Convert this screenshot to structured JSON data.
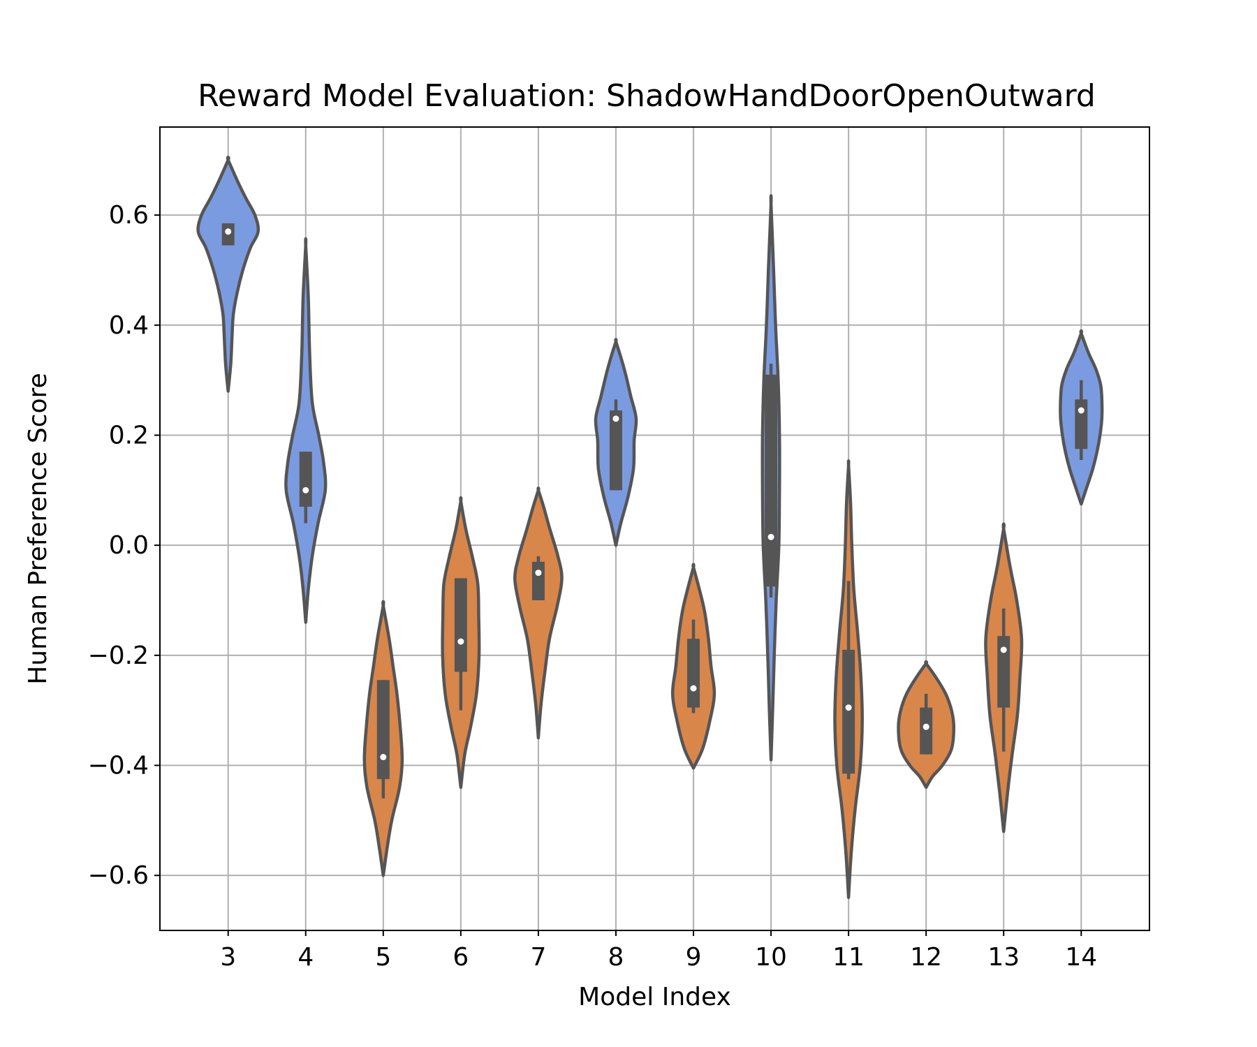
{
  "chart_data": {
    "type": "violin",
    "title": "Reward Model Evaluation: ShadowHandDoorOpenOutward",
    "xlabel": "Model Index",
    "ylabel": "Human Preference Score",
    "ylim": [
      -0.7,
      0.76
    ],
    "yticks": [
      -0.6,
      -0.4,
      -0.2,
      0.0,
      0.2,
      0.4,
      0.6
    ],
    "ytick_labels": [
      "−0.6",
      "−0.4",
      "−0.2",
      "0.0",
      "0.2",
      "0.4",
      "0.6"
    ],
    "grid": true,
    "colors": {
      "blue": "#7b9be0",
      "orange": "#d9864a",
      "edge": "#555555"
    },
    "categories": [
      "3",
      "4",
      "5",
      "6",
      "7",
      "8",
      "9",
      "10",
      "11",
      "12",
      "13",
      "14"
    ],
    "series": [
      {
        "x": "3",
        "color": "blue",
        "median": 0.57,
        "q1": 0.545,
        "q3": 0.585,
        "whisker_low": 0.545,
        "whisker_high": 0.585,
        "min": 0.28,
        "max": 0.7,
        "profile": [
          [
            0.28,
            0.0
          ],
          [
            0.33,
            0.08
          ],
          [
            0.38,
            0.12
          ],
          [
            0.42,
            0.16
          ],
          [
            0.46,
            0.28
          ],
          [
            0.5,
            0.45
          ],
          [
            0.54,
            0.68
          ],
          [
            0.57,
            0.92
          ],
          [
            0.6,
            0.82
          ],
          [
            0.63,
            0.55
          ],
          [
            0.66,
            0.3
          ],
          [
            0.7,
            0.0
          ]
        ]
      },
      {
        "x": "4",
        "color": "blue",
        "median": 0.1,
        "q1": 0.07,
        "q3": 0.17,
        "whisker_low": 0.04,
        "whisker_high": 0.17,
        "min": -0.14,
        "max": 0.545,
        "profile": [
          [
            -0.14,
            0.0
          ],
          [
            -0.08,
            0.08
          ],
          [
            -0.02,
            0.2
          ],
          [
            0.04,
            0.38
          ],
          [
            0.1,
            0.6
          ],
          [
            0.15,
            0.55
          ],
          [
            0.2,
            0.4
          ],
          [
            0.26,
            0.2
          ],
          [
            0.35,
            0.12
          ],
          [
            0.45,
            0.08
          ],
          [
            0.545,
            0.0
          ]
        ]
      },
      {
        "x": "5",
        "color": "orange",
        "median": -0.385,
        "q1": -0.425,
        "q3": -0.245,
        "whisker_low": -0.46,
        "whisker_high": -0.245,
        "min": -0.6,
        "max": -0.11,
        "profile": [
          [
            -0.6,
            0.0
          ],
          [
            -0.55,
            0.12
          ],
          [
            -0.5,
            0.26
          ],
          [
            -0.44,
            0.5
          ],
          [
            -0.39,
            0.58
          ],
          [
            -0.33,
            0.52
          ],
          [
            -0.27,
            0.42
          ],
          [
            -0.22,
            0.3
          ],
          [
            -0.17,
            0.18
          ],
          [
            -0.11,
            0.0
          ]
        ]
      },
      {
        "x": "6",
        "color": "orange",
        "median": -0.175,
        "q1": -0.23,
        "q3": -0.06,
        "whisker_low": -0.3,
        "whisker_high": -0.06,
        "min": -0.44,
        "max": 0.08,
        "profile": [
          [
            -0.44,
            0.0
          ],
          [
            -0.38,
            0.12
          ],
          [
            -0.33,
            0.3
          ],
          [
            -0.27,
            0.48
          ],
          [
            -0.2,
            0.56
          ],
          [
            -0.13,
            0.55
          ],
          [
            -0.07,
            0.52
          ],
          [
            -0.02,
            0.35
          ],
          [
            0.03,
            0.15
          ],
          [
            0.08,
            0.0
          ]
        ]
      },
      {
        "x": "7",
        "color": "orange",
        "median": -0.05,
        "q1": -0.1,
        "q3": -0.03,
        "whisker_low": -0.1,
        "whisker_high": -0.02,
        "min": -0.35,
        "max": 0.1,
        "profile": [
          [
            -0.35,
            0.0
          ],
          [
            -0.29,
            0.08
          ],
          [
            -0.23,
            0.2
          ],
          [
            -0.17,
            0.34
          ],
          [
            -0.11,
            0.58
          ],
          [
            -0.06,
            0.72
          ],
          [
            -0.02,
            0.6
          ],
          [
            0.03,
            0.35
          ],
          [
            0.07,
            0.16
          ],
          [
            0.1,
            0.0
          ]
        ]
      },
      {
        "x": "8",
        "color": "blue",
        "median": 0.23,
        "q1": 0.1,
        "q3": 0.245,
        "whisker_low": 0.1,
        "whisker_high": 0.265,
        "min": 0.0,
        "max": 0.37,
        "profile": [
          [
            0.0,
            0.0
          ],
          [
            0.04,
            0.15
          ],
          [
            0.09,
            0.38
          ],
          [
            0.14,
            0.54
          ],
          [
            0.19,
            0.56
          ],
          [
            0.23,
            0.62
          ],
          [
            0.27,
            0.46
          ],
          [
            0.31,
            0.3
          ],
          [
            0.34,
            0.16
          ],
          [
            0.37,
            0.0
          ]
        ]
      },
      {
        "x": "9",
        "color": "orange",
        "median": -0.26,
        "q1": -0.295,
        "q3": -0.17,
        "whisker_low": -0.305,
        "whisker_high": -0.135,
        "min": -0.405,
        "max": -0.04,
        "profile": [
          [
            -0.405,
            0.0
          ],
          [
            -0.37,
            0.28
          ],
          [
            -0.32,
            0.5
          ],
          [
            -0.27,
            0.64
          ],
          [
            -0.22,
            0.54
          ],
          [
            -0.17,
            0.46
          ],
          [
            -0.12,
            0.34
          ],
          [
            -0.08,
            0.18
          ],
          [
            -0.04,
            0.0
          ]
        ]
      },
      {
        "x": "10",
        "color": "blue",
        "median": 0.015,
        "q1": -0.075,
        "q3": 0.31,
        "whisker_low": -0.095,
        "whisker_high": 0.33,
        "min": -0.39,
        "max": 0.62,
        "profile": [
          [
            -0.39,
            0.0
          ],
          [
            -0.3,
            0.05
          ],
          [
            -0.2,
            0.1
          ],
          [
            -0.1,
            0.16
          ],
          [
            0.0,
            0.24
          ],
          [
            0.1,
            0.26
          ],
          [
            0.2,
            0.26
          ],
          [
            0.3,
            0.22
          ],
          [
            0.4,
            0.14
          ],
          [
            0.5,
            0.08
          ],
          [
            0.62,
            0.0
          ]
        ]
      },
      {
        "x": "11",
        "color": "orange",
        "median": -0.295,
        "q1": -0.415,
        "q3": -0.19,
        "whisker_low": -0.425,
        "whisker_high": -0.065,
        "min": -0.64,
        "max": 0.145,
        "profile": [
          [
            -0.64,
            0.0
          ],
          [
            -0.56,
            0.08
          ],
          [
            -0.48,
            0.2
          ],
          [
            -0.4,
            0.36
          ],
          [
            -0.32,
            0.42
          ],
          [
            -0.24,
            0.38
          ],
          [
            -0.16,
            0.28
          ],
          [
            -0.08,
            0.16
          ],
          [
            0.0,
            0.1
          ],
          [
            0.08,
            0.06
          ],
          [
            0.145,
            0.0
          ]
        ]
      },
      {
        "x": "12",
        "color": "orange",
        "median": -0.33,
        "q1": -0.38,
        "q3": -0.295,
        "whisker_low": -0.38,
        "whisker_high": -0.27,
        "min": -0.44,
        "max": -0.215,
        "profile": [
          [
            -0.44,
            0.0
          ],
          [
            -0.42,
            0.2
          ],
          [
            -0.4,
            0.5
          ],
          [
            -0.37,
            0.78
          ],
          [
            -0.33,
            0.85
          ],
          [
            -0.3,
            0.78
          ],
          [
            -0.27,
            0.6
          ],
          [
            -0.24,
            0.3
          ],
          [
            -0.215,
            0.0
          ]
        ]
      },
      {
        "x": "13",
        "color": "orange",
        "median": -0.19,
        "q1": -0.295,
        "q3": -0.165,
        "whisker_low": -0.375,
        "whisker_high": -0.115,
        "min": -0.52,
        "max": 0.03,
        "profile": [
          [
            -0.52,
            0.0
          ],
          [
            -0.45,
            0.12
          ],
          [
            -0.38,
            0.26
          ],
          [
            -0.31,
            0.42
          ],
          [
            -0.24,
            0.5
          ],
          [
            -0.17,
            0.55
          ],
          [
            -0.1,
            0.4
          ],
          [
            -0.04,
            0.2
          ],
          [
            0.03,
            0.0
          ]
        ]
      },
      {
        "x": "14",
        "color": "blue",
        "median": 0.245,
        "q1": 0.175,
        "q3": 0.265,
        "whisker_low": 0.155,
        "whisker_high": 0.3,
        "min": 0.075,
        "max": 0.385,
        "profile": [
          [
            0.075,
            0.0
          ],
          [
            0.1,
            0.14
          ],
          [
            0.14,
            0.36
          ],
          [
            0.18,
            0.52
          ],
          [
            0.22,
            0.62
          ],
          [
            0.25,
            0.64
          ],
          [
            0.29,
            0.6
          ],
          [
            0.32,
            0.45
          ],
          [
            0.35,
            0.22
          ],
          [
            0.385,
            0.0
          ]
        ]
      }
    ]
  }
}
